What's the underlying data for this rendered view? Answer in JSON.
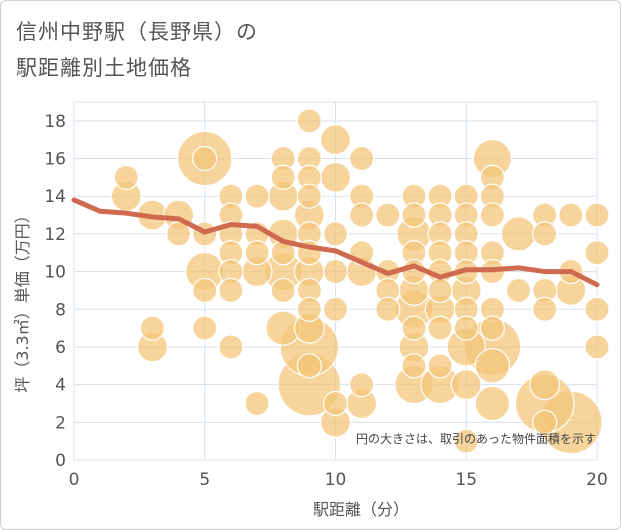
{
  "title_line1": "信州中野駅（長野県）の",
  "title_line2": "駅距離別土地価格",
  "chart_data": {
    "type": "scatter",
    "xlabel": "駅距離（分）",
    "ylabel": "坪（3.3㎡）単価（万円）",
    "xlim": [
      0,
      20
    ],
    "ylim": [
      0,
      19
    ],
    "xticks": [
      0,
      5,
      10,
      15,
      20
    ],
    "yticks": [
      0,
      2,
      4,
      6,
      8,
      10,
      12,
      14,
      16,
      18
    ],
    "grid": true,
    "note": "円の大きさは、取引のあった物件面積を示す",
    "colors": {
      "bubble": "#f3c57a",
      "bubble_edge": "#ffffff",
      "line": "#cf6a4f",
      "grid": "#d6e0ec"
    },
    "trend_line": {
      "x": [
        0,
        1,
        2,
        3,
        4,
        5,
        6,
        7,
        8,
        9,
        10,
        11,
        12,
        13,
        14,
        15,
        16,
        17,
        18,
        19,
        20
      ],
      "y": [
        13.8,
        13.2,
        13.1,
        12.9,
        12.8,
        12.1,
        12.5,
        12.4,
        11.6,
        11.3,
        11.1,
        10.5,
        9.9,
        10.3,
        9.7,
        10.1,
        10.1,
        10.2,
        10.0,
        10.0,
        9.3
      ]
    },
    "points": [
      {
        "x": 2,
        "y": 15,
        "s": 1
      },
      {
        "x": 2,
        "y": 14,
        "s": 2
      },
      {
        "x": 3,
        "y": 13,
        "s": 2
      },
      {
        "x": 3,
        "y": 7,
        "s": 1
      },
      {
        "x": 3,
        "y": 6,
        "s": 2
      },
      {
        "x": 4,
        "y": 13,
        "s": 2
      },
      {
        "x": 4,
        "y": 12,
        "s": 1
      },
      {
        "x": 5,
        "y": 16,
        "s": 10
      },
      {
        "x": 5,
        "y": 16,
        "s": 1
      },
      {
        "x": 5,
        "y": 12,
        "s": 1
      },
      {
        "x": 5,
        "y": 10,
        "s": 4
      },
      {
        "x": 5,
        "y": 9,
        "s": 1
      },
      {
        "x": 5,
        "y": 7,
        "s": 1
      },
      {
        "x": 6,
        "y": 14,
        "s": 1
      },
      {
        "x": 6,
        "y": 13,
        "s": 1
      },
      {
        "x": 6,
        "y": 12,
        "s": 1
      },
      {
        "x": 6,
        "y": 11,
        "s": 1
      },
      {
        "x": 6,
        "y": 10,
        "s": 1
      },
      {
        "x": 6,
        "y": 9,
        "s": 1
      },
      {
        "x": 6,
        "y": 6,
        "s": 1
      },
      {
        "x": 7,
        "y": 14,
        "s": 1
      },
      {
        "x": 7,
        "y": 12,
        "s": 1
      },
      {
        "x": 7,
        "y": 11,
        "s": 1
      },
      {
        "x": 7,
        "y": 10,
        "s": 2
      },
      {
        "x": 7,
        "y": 3,
        "s": 1
      },
      {
        "x": 8,
        "y": 16,
        "s": 1
      },
      {
        "x": 8,
        "y": 15,
        "s": 1
      },
      {
        "x": 8,
        "y": 14,
        "s": 2
      },
      {
        "x": 8,
        "y": 12,
        "s": 2
      },
      {
        "x": 8,
        "y": 11,
        "s": 1
      },
      {
        "x": 8,
        "y": 10,
        "s": 4
      },
      {
        "x": 8,
        "y": 9,
        "s": 1
      },
      {
        "x": 8,
        "y": 7,
        "s": 3
      },
      {
        "x": 9,
        "y": 18,
        "s": 1
      },
      {
        "x": 9,
        "y": 16,
        "s": 1
      },
      {
        "x": 9,
        "y": 15,
        "s": 1
      },
      {
        "x": 9,
        "y": 14,
        "s": 1
      },
      {
        "x": 9,
        "y": 13,
        "s": 2
      },
      {
        "x": 9,
        "y": 12,
        "s": 1
      },
      {
        "x": 9,
        "y": 11,
        "s": 1
      },
      {
        "x": 9,
        "y": 10,
        "s": 2
      },
      {
        "x": 9,
        "y": 9,
        "s": 1
      },
      {
        "x": 9,
        "y": 8,
        "s": 1
      },
      {
        "x": 9,
        "y": 7,
        "s": 2
      },
      {
        "x": 9,
        "y": 6,
        "s": 12
      },
      {
        "x": 9,
        "y": 5,
        "s": 1
      },
      {
        "x": 9,
        "y": 4,
        "s": 14
      },
      {
        "x": 10,
        "y": 17,
        "s": 2
      },
      {
        "x": 10,
        "y": 15,
        "s": 2
      },
      {
        "x": 10,
        "y": 12,
        "s": 1
      },
      {
        "x": 10,
        "y": 10,
        "s": 1
      },
      {
        "x": 10,
        "y": 8,
        "s": 1
      },
      {
        "x": 10,
        "y": 3,
        "s": 1
      },
      {
        "x": 10,
        "y": 2,
        "s": 2
      },
      {
        "x": 11,
        "y": 16,
        "s": 1
      },
      {
        "x": 11,
        "y": 14,
        "s": 1
      },
      {
        "x": 11,
        "y": 13,
        "s": 1
      },
      {
        "x": 11,
        "y": 11,
        "s": 1
      },
      {
        "x": 11,
        "y": 10,
        "s": 2
      },
      {
        "x": 11,
        "y": 4,
        "s": 1
      },
      {
        "x": 11,
        "y": 3,
        "s": 2
      },
      {
        "x": 12,
        "y": 13,
        "s": 1
      },
      {
        "x": 12,
        "y": 10,
        "s": 1
      },
      {
        "x": 12,
        "y": 9,
        "s": 1
      },
      {
        "x": 12,
        "y": 8,
        "s": 1
      },
      {
        "x": 13,
        "y": 14,
        "s": 1
      },
      {
        "x": 13,
        "y": 13,
        "s": 1
      },
      {
        "x": 13,
        "y": 12,
        "s": 3
      },
      {
        "x": 13,
        "y": 11,
        "s": 1
      },
      {
        "x": 13,
        "y": 10,
        "s": 1
      },
      {
        "x": 13,
        "y": 9,
        "s": 2
      },
      {
        "x": 13,
        "y": 8,
        "s": 4
      },
      {
        "x": 13,
        "y": 7,
        "s": 1
      },
      {
        "x": 13,
        "y": 6,
        "s": 2
      },
      {
        "x": 13,
        "y": 5,
        "s": 1
      },
      {
        "x": 13,
        "y": 4,
        "s": 4
      },
      {
        "x": 14,
        "y": 14,
        "s": 1
      },
      {
        "x": 14,
        "y": 13,
        "s": 1
      },
      {
        "x": 14,
        "y": 12,
        "s": 1
      },
      {
        "x": 14,
        "y": 11,
        "s": 1
      },
      {
        "x": 14,
        "y": 10,
        "s": 1
      },
      {
        "x": 14,
        "y": 9,
        "s": 1
      },
      {
        "x": 14,
        "y": 8,
        "s": 2
      },
      {
        "x": 14,
        "y": 7,
        "s": 1
      },
      {
        "x": 14,
        "y": 5,
        "s": 1
      },
      {
        "x": 14,
        "y": 4,
        "s": 4
      },
      {
        "x": 15,
        "y": 14,
        "s": 1
      },
      {
        "x": 15,
        "y": 13,
        "s": 1
      },
      {
        "x": 15,
        "y": 12,
        "s": 1
      },
      {
        "x": 15,
        "y": 11,
        "s": 1
      },
      {
        "x": 15,
        "y": 10,
        "s": 1
      },
      {
        "x": 15,
        "y": 9,
        "s": 2
      },
      {
        "x": 15,
        "y": 8,
        "s": 1
      },
      {
        "x": 15,
        "y": 7,
        "s": 1
      },
      {
        "x": 15,
        "y": 6,
        "s": 4
      },
      {
        "x": 15,
        "y": 4,
        "s": 2
      },
      {
        "x": 15,
        "y": 1,
        "s": 1
      },
      {
        "x": 16,
        "y": 16,
        "s": 4
      },
      {
        "x": 16,
        "y": 15,
        "s": 1
      },
      {
        "x": 16,
        "y": 14,
        "s": 1
      },
      {
        "x": 16,
        "y": 13,
        "s": 1
      },
      {
        "x": 16,
        "y": 11,
        "s": 1
      },
      {
        "x": 16,
        "y": 10,
        "s": 1
      },
      {
        "x": 16,
        "y": 8,
        "s": 1
      },
      {
        "x": 16,
        "y": 7,
        "s": 1
      },
      {
        "x": 16,
        "y": 6,
        "s": 11
      },
      {
        "x": 16,
        "y": 5,
        "s": 3
      },
      {
        "x": 16,
        "y": 3,
        "s": 3
      },
      {
        "x": 17,
        "y": 12,
        "s": 3
      },
      {
        "x": 17,
        "y": 9,
        "s": 1
      },
      {
        "x": 18,
        "y": 13,
        "s": 1
      },
      {
        "x": 18,
        "y": 12,
        "s": 1
      },
      {
        "x": 18,
        "y": 9,
        "s": 1
      },
      {
        "x": 18,
        "y": 8,
        "s": 1
      },
      {
        "x": 18,
        "y": 4,
        "s": 2
      },
      {
        "x": 18,
        "y": 3,
        "s": 12
      },
      {
        "x": 18,
        "y": 2,
        "s": 1
      },
      {
        "x": 19,
        "y": 13,
        "s": 1
      },
      {
        "x": 19,
        "y": 10,
        "s": 1
      },
      {
        "x": 19,
        "y": 9,
        "s": 2
      },
      {
        "x": 19,
        "y": 2,
        "s": 14
      },
      {
        "x": 20,
        "y": 13,
        "s": 1
      },
      {
        "x": 20,
        "y": 11,
        "s": 1
      },
      {
        "x": 20,
        "y": 8,
        "s": 1
      },
      {
        "x": 20,
        "y": 6,
        "s": 1
      }
    ]
  }
}
